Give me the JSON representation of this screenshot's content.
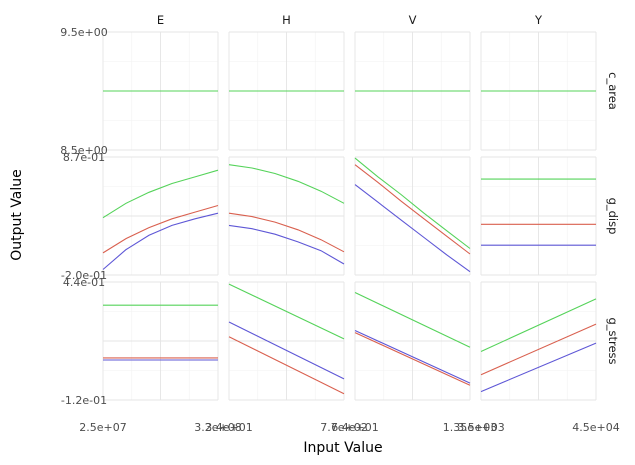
{
  "chart_data": {
    "type": "line",
    "xlabel": "Input Value",
    "ylabel": "Output Value",
    "colors": {
      "E": "#5e57d6",
      "H": "#d9604f",
      "V": "#55d35a"
    },
    "columns": [
      {
        "label": "E",
        "xlim": [
          25000000,
          320000000
        ],
        "x_ticks": [
          "2.5e+07",
          "3.2e+08"
        ]
      },
      {
        "label": "H",
        "xlim": [
          34,
          770
        ],
        "x_ticks": [
          "3.4e+01",
          "7.7e+02"
        ]
      },
      {
        "label": "V",
        "xlim": [
          64,
          1350
        ],
        "x_ticks": [
          "6.4e+01",
          "1.35e+03"
        ]
      },
      {
        "label": "Y",
        "xlim": [
          3500,
          45000
        ],
        "x_ticks": [
          "3.5e+03",
          "4.5e+04"
        ]
      }
    ],
    "rows": [
      {
        "label": "c_area",
        "ylim": [
          8.5,
          9.5
        ],
        "y_ticks": [
          "9.5e+00",
          "8.5e+00"
        ]
      },
      {
        "label": "g_disp",
        "ylim": [
          -0.2,
          0.87
        ],
        "y_ticks": [
          "8.7e-01",
          "-2.0e-01"
        ]
      },
      {
        "label": "g_stress",
        "ylim": [
          -0.12,
          0.44
        ],
        "y_ticks": [
          "4.4e-01",
          "-1.2e-01"
        ]
      }
    ],
    "panels": [
      {
        "row": 0,
        "col": 0,
        "series": [
          {
            "values": [
              9.0,
              9.0
            ]
          },
          {
            "values": [
              9.0,
              9.0
            ]
          },
          {
            "values": [
              9.0,
              9.0
            ]
          }
        ]
      },
      {
        "row": 0,
        "col": 1,
        "series": [
          {
            "values": [
              9.0,
              9.0
            ]
          },
          {
            "values": [
              9.0,
              9.0
            ]
          },
          {
            "values": [
              9.0,
              9.0
            ]
          }
        ]
      },
      {
        "row": 0,
        "col": 2,
        "series": [
          {
            "values": [
              9.0,
              9.0
            ]
          },
          {
            "values": [
              9.0,
              9.0
            ]
          },
          {
            "values": [
              9.0,
              9.0
            ]
          }
        ]
      },
      {
        "row": 0,
        "col": 3,
        "series": [
          {
            "values": [
              9.0,
              9.0
            ]
          },
          {
            "values": [
              9.0,
              9.0
            ]
          },
          {
            "values": [
              9.0,
              9.0
            ]
          }
        ]
      },
      {
        "row": 1,
        "col": 0,
        "series": [
          {
            "values": [
              -0.15,
              0.03,
              0.16,
              0.25,
              0.31,
              0.36
            ]
          },
          {
            "values": [
              0.0,
              0.13,
              0.23,
              0.31,
              0.37,
              0.43
            ]
          },
          {
            "values": [
              0.32,
              0.45,
              0.55,
              0.63,
              0.69,
              0.75
            ]
          }
        ]
      },
      {
        "row": 1,
        "col": 1,
        "series": [
          {
            "values": [
              0.25,
              0.22,
              0.17,
              0.1,
              0.02,
              -0.1
            ]
          },
          {
            "values": [
              0.36,
              0.33,
              0.28,
              0.21,
              0.12,
              0.01
            ]
          },
          {
            "values": [
              0.8,
              0.77,
              0.72,
              0.65,
              0.56,
              0.45
            ]
          }
        ]
      },
      {
        "row": 1,
        "col": 2,
        "series": [
          {
            "values": [
              0.62,
              0.46,
              0.3,
              0.14,
              -0.02,
              -0.17
            ]
          },
          {
            "values": [
              0.8,
              0.64,
              0.47,
              0.31,
              0.15,
              -0.01
            ]
          },
          {
            "values": [
              0.86,
              0.69,
              0.53,
              0.36,
              0.2,
              0.04
            ]
          }
        ]
      },
      {
        "row": 1,
        "col": 3,
        "series": [
          {
            "values": [
              0.07,
              0.07,
              0.07,
              0.07,
              0.07,
              0.07
            ]
          },
          {
            "values": [
              0.26,
              0.26,
              0.26,
              0.26,
              0.26,
              0.26
            ]
          },
          {
            "values": [
              0.67,
              0.67,
              0.67,
              0.67,
              0.67,
              0.67
            ]
          }
        ]
      },
      {
        "row": 2,
        "col": 0,
        "series": [
          {
            "values": [
              0.07,
              0.07
            ]
          },
          {
            "values": [
              0.08,
              0.08
            ]
          },
          {
            "values": [
              0.33,
              0.33
            ]
          }
        ]
      },
      {
        "row": 2,
        "col": 1,
        "series": [
          {
            "values": [
              0.25,
              -0.02
            ]
          },
          {
            "values": [
              0.18,
              -0.09
            ]
          },
          {
            "values": [
              0.43,
              0.17
            ]
          }
        ]
      },
      {
        "row": 2,
        "col": 2,
        "series": [
          {
            "values": [
              0.21,
              -0.04
            ]
          },
          {
            "values": [
              0.2,
              -0.05
            ]
          },
          {
            "values": [
              0.39,
              0.13
            ]
          }
        ]
      },
      {
        "row": 2,
        "col": 3,
        "series": [
          {
            "values": [
              -0.08,
              0.15
            ]
          },
          {
            "values": [
              0.0,
              0.24
            ]
          },
          {
            "values": [
              0.11,
              0.36
            ]
          }
        ]
      }
    ]
  }
}
